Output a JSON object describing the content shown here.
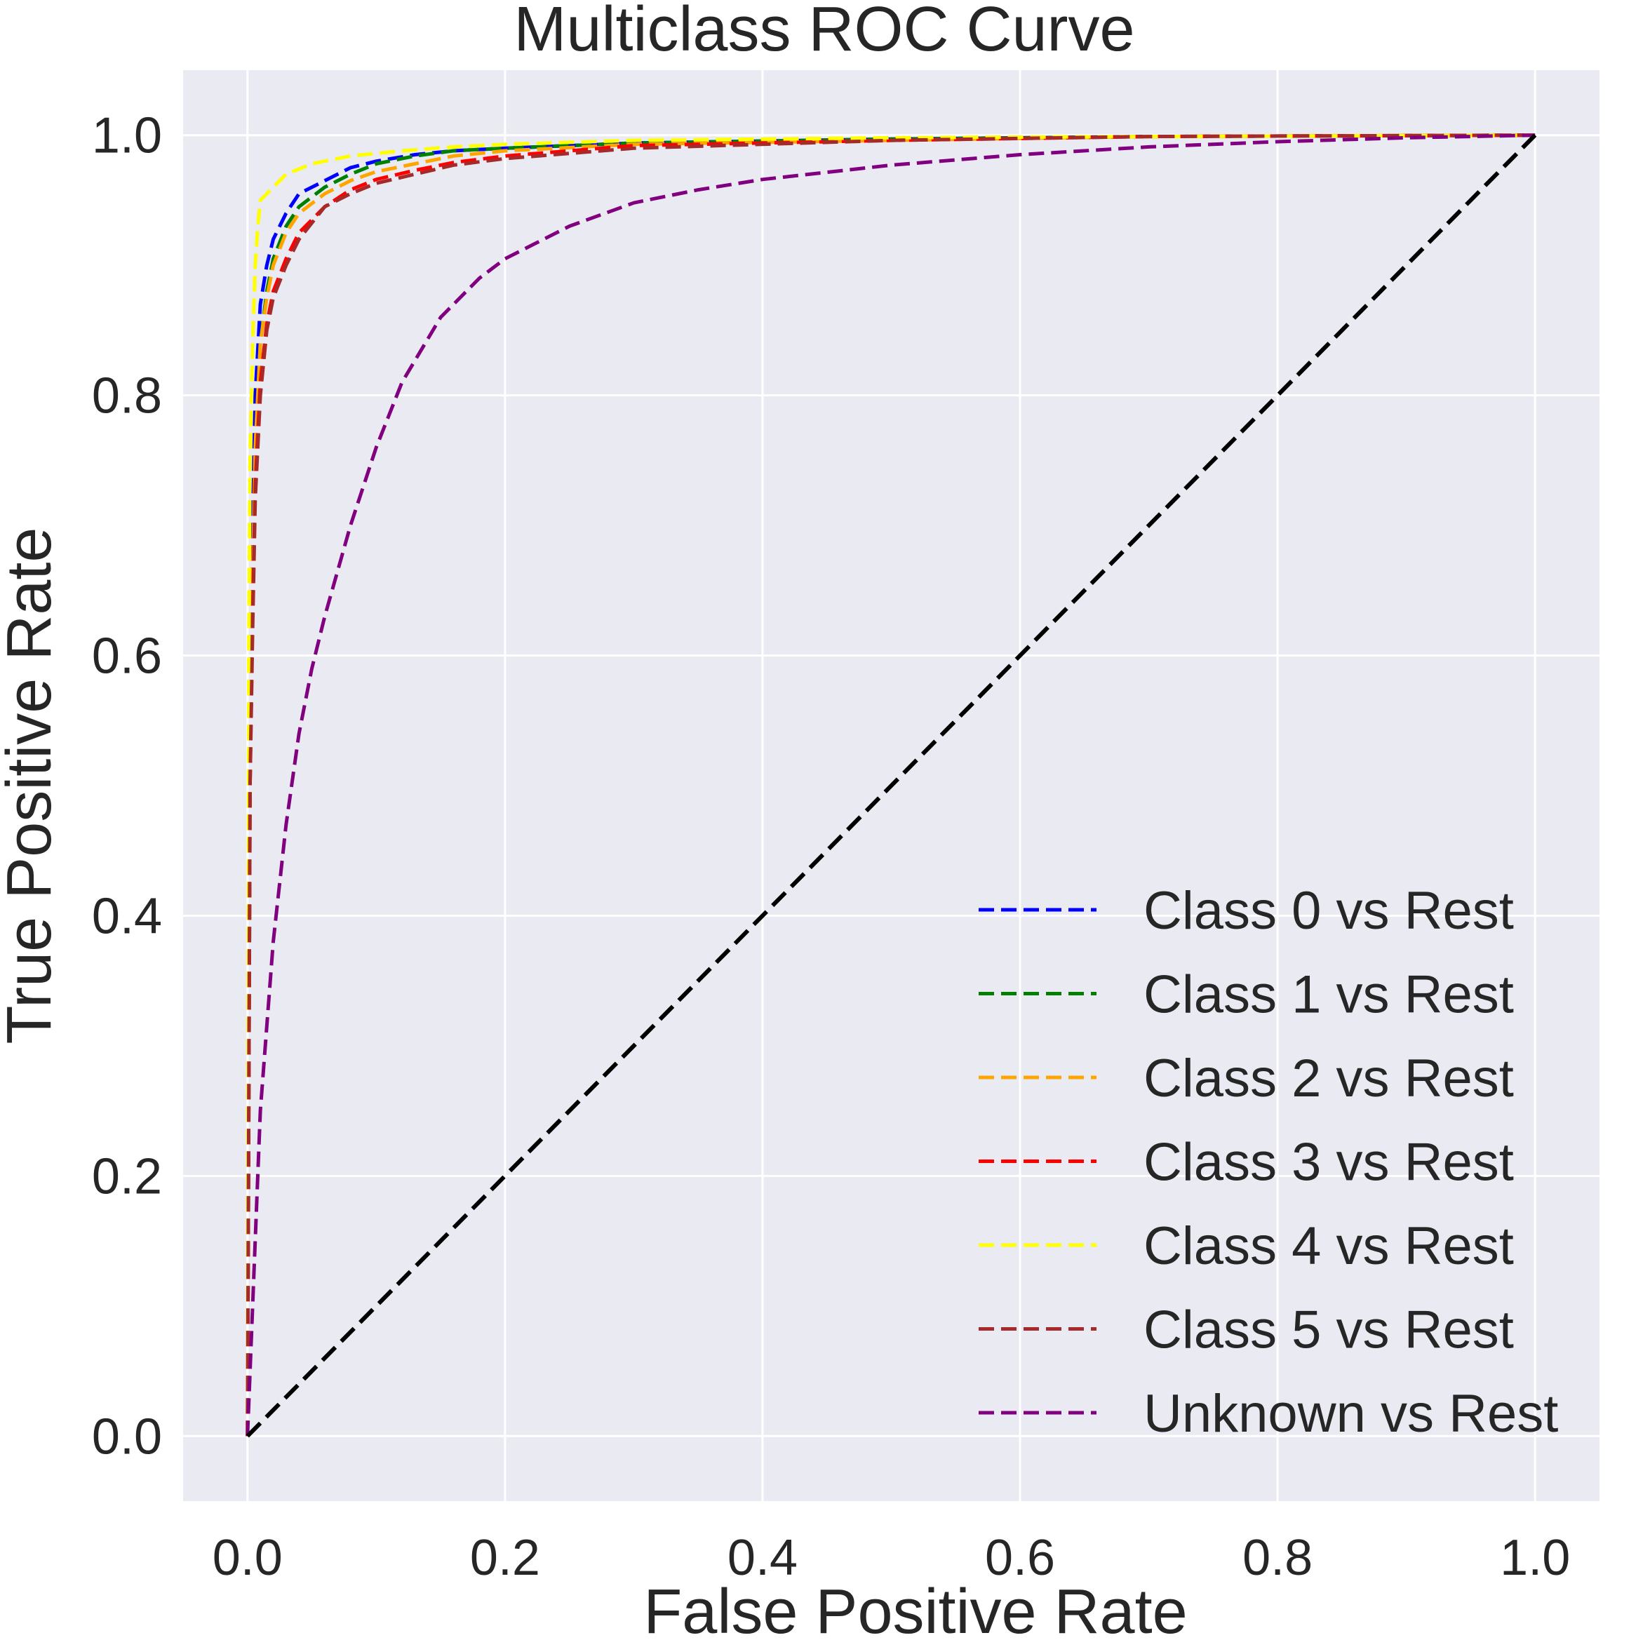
{
  "chart_data": {
    "type": "line",
    "title": "Multiclass ROC Curve",
    "xlabel": "False Positive Rate",
    "ylabel": "True Positive Rate",
    "xlim": [
      -0.05,
      1.05
    ],
    "ylim": [
      -0.05,
      1.05
    ],
    "xticks": [
      "0.0",
      "0.2",
      "0.4",
      "0.6",
      "0.8",
      "1.0"
    ],
    "yticks": [
      "0.0",
      "0.2",
      "0.4",
      "0.6",
      "0.8",
      "1.0"
    ],
    "grid": true,
    "legend_position": "bottom-right",
    "series": [
      {
        "name": "Class 0 vs Rest",
        "color": "#0000ff",
        "x": [
          0,
          0.002,
          0.004,
          0.006,
          0.01,
          0.015,
          0.02,
          0.03,
          0.04,
          0.06,
          0.08,
          0.1,
          0.13,
          0.16,
          0.2,
          0.3,
          0.5,
          0.7,
          1.0
        ],
        "y": [
          0,
          0.55,
          0.7,
          0.8,
          0.87,
          0.9,
          0.92,
          0.94,
          0.955,
          0.965,
          0.975,
          0.98,
          0.985,
          0.988,
          0.99,
          0.994,
          0.997,
          0.999,
          1.0
        ]
      },
      {
        "name": "Class 1 vs Rest",
        "color": "#008000",
        "x": [
          0,
          0.002,
          0.004,
          0.006,
          0.01,
          0.015,
          0.02,
          0.03,
          0.04,
          0.06,
          0.08,
          0.1,
          0.13,
          0.16,
          0.2,
          0.3,
          0.5,
          0.7,
          1.0
        ],
        "y": [
          0,
          0.5,
          0.65,
          0.76,
          0.84,
          0.88,
          0.905,
          0.93,
          0.945,
          0.96,
          0.97,
          0.978,
          0.984,
          0.988,
          0.99,
          0.994,
          0.997,
          0.999,
          1.0
        ]
      },
      {
        "name": "Class 2 vs Rest",
        "color": "#ffa500",
        "x": [
          0,
          0.002,
          0.004,
          0.006,
          0.01,
          0.015,
          0.02,
          0.03,
          0.04,
          0.06,
          0.08,
          0.1,
          0.13,
          0.16,
          0.2,
          0.3,
          0.5,
          0.7,
          1.0
        ],
        "y": [
          0,
          0.52,
          0.66,
          0.76,
          0.84,
          0.875,
          0.9,
          0.925,
          0.94,
          0.955,
          0.965,
          0.972,
          0.978,
          0.984,
          0.988,
          0.993,
          0.996,
          0.999,
          1.0
        ]
      },
      {
        "name": "Class 3 vs Rest",
        "color": "#ff0000",
        "x": [
          0,
          0.002,
          0.004,
          0.006,
          0.01,
          0.015,
          0.02,
          0.03,
          0.04,
          0.06,
          0.08,
          0.1,
          0.13,
          0.16,
          0.2,
          0.25,
          0.3,
          0.5,
          0.7,
          1.0
        ],
        "y": [
          0,
          0.5,
          0.63,
          0.73,
          0.81,
          0.855,
          0.88,
          0.905,
          0.925,
          0.945,
          0.958,
          0.966,
          0.973,
          0.979,
          0.984,
          0.988,
          0.992,
          0.996,
          0.999,
          1.0
        ]
      },
      {
        "name": "Class 4 vs Rest",
        "color": "#ffff00",
        "x": [
          0,
          0.001,
          0.002,
          0.004,
          0.006,
          0.008,
          0.01,
          0.015,
          0.02,
          0.03,
          0.05,
          0.08,
          0.12,
          0.16,
          0.2,
          0.3,
          0.5,
          0.7,
          1.0
        ],
        "y": [
          0,
          0.6,
          0.75,
          0.84,
          0.9,
          0.93,
          0.95,
          0.955,
          0.96,
          0.97,
          0.978,
          0.984,
          0.988,
          0.991,
          0.993,
          0.996,
          0.998,
          0.999,
          1.0
        ]
      },
      {
        "name": "Class 5 vs Rest",
        "color": "#a52a2a",
        "x": [
          0,
          0.002,
          0.004,
          0.006,
          0.01,
          0.015,
          0.02,
          0.03,
          0.04,
          0.06,
          0.08,
          0.1,
          0.13,
          0.16,
          0.2,
          0.25,
          0.3,
          0.5,
          0.7,
          1.0
        ],
        "y": [
          0,
          0.5,
          0.62,
          0.72,
          0.8,
          0.85,
          0.875,
          0.9,
          0.92,
          0.945,
          0.955,
          0.963,
          0.97,
          0.977,
          0.982,
          0.986,
          0.99,
          0.996,
          0.999,
          1.0
        ]
      },
      {
        "name": "Unknown vs Rest",
        "color": "#800080",
        "x": [
          0,
          0.01,
          0.02,
          0.03,
          0.04,
          0.05,
          0.06,
          0.08,
          0.1,
          0.12,
          0.15,
          0.18,
          0.2,
          0.25,
          0.3,
          0.35,
          0.4,
          0.5,
          0.6,
          0.7,
          0.8,
          0.9,
          1.0
        ],
        "y": [
          0,
          0.25,
          0.38,
          0.47,
          0.54,
          0.59,
          0.63,
          0.7,
          0.76,
          0.81,
          0.86,
          0.89,
          0.905,
          0.93,
          0.948,
          0.958,
          0.966,
          0.977,
          0.985,
          0.991,
          0.995,
          0.998,
          1.0
        ]
      }
    ],
    "reference_line": {
      "color": "#000000",
      "x": [
        0,
        1
      ],
      "y": [
        0,
        1
      ]
    }
  }
}
